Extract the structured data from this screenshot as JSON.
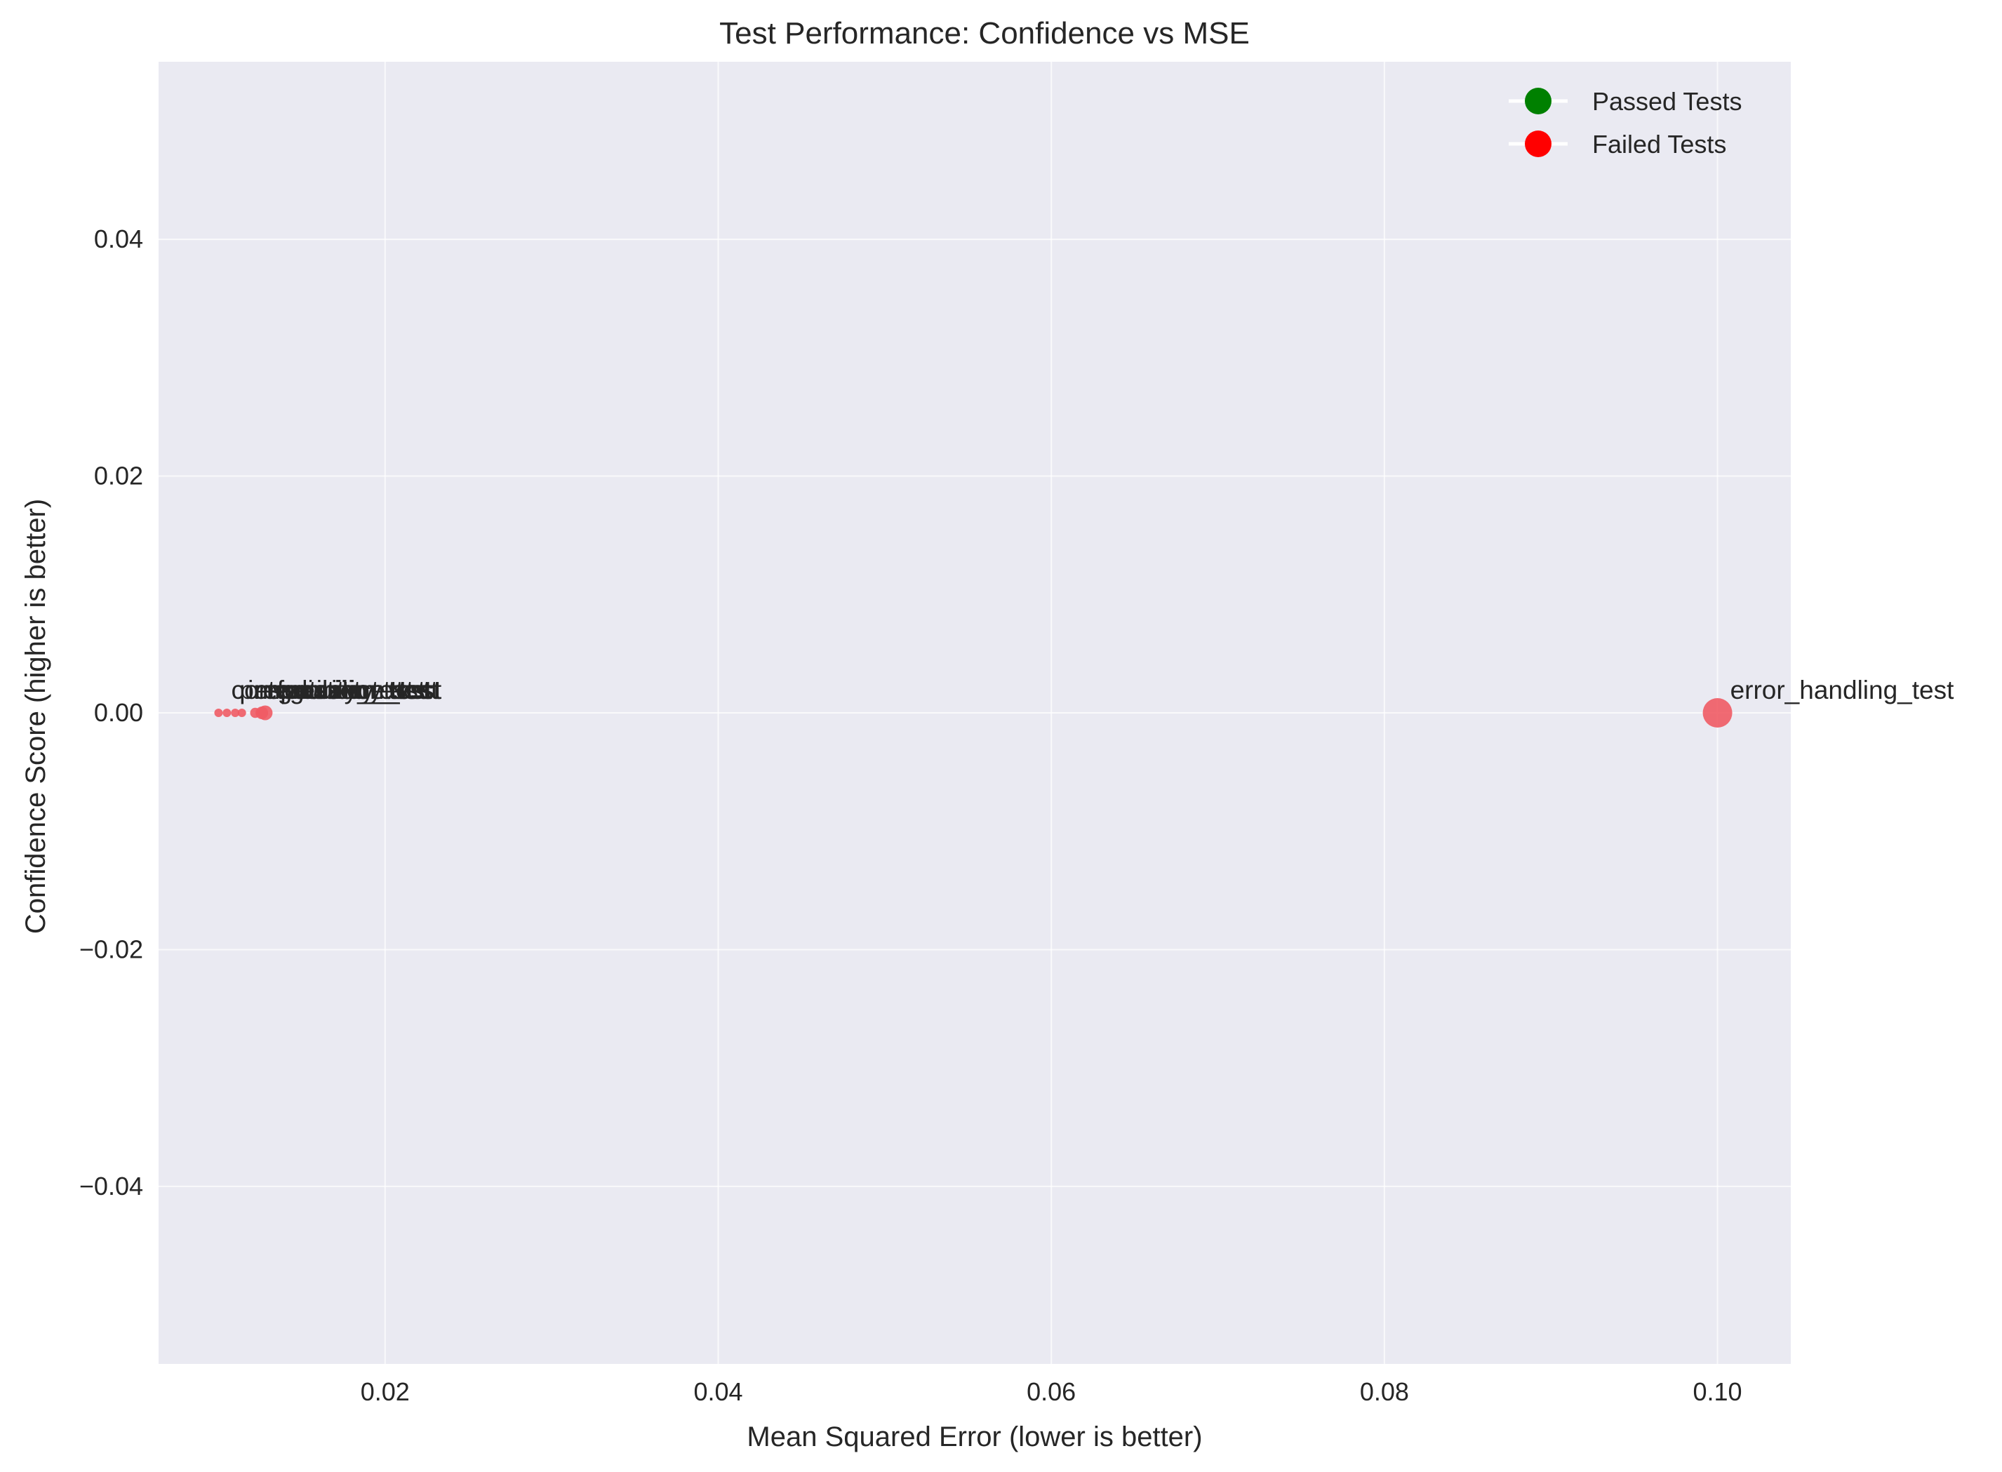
{
  "chart_data": {
    "type": "scatter",
    "title": "Test Performance: Confidence vs MSE",
    "xlabel": "Mean Squared Error (lower is better)",
    "ylabel": "Confidence Score (higher is better)",
    "xlim": [
      0.0064,
      0.1044
    ],
    "ylim": [
      -0.055,
      0.055
    ],
    "xticks": [
      0.02,
      0.04,
      0.06,
      0.08,
      0.1
    ],
    "xtick_labels": [
      "0.02",
      "0.04",
      "0.06",
      "0.08",
      "0.10"
    ],
    "yticks": [
      -0.04,
      -0.02,
      0.0,
      0.02,
      0.04
    ],
    "ytick_labels": [
      "−0.04",
      "−0.02",
      "0.00",
      "0.02",
      "0.04"
    ],
    "grid": true,
    "legend_position": "top-right",
    "legend": [
      {
        "label": "Passed Tests",
        "color": "#008000"
      },
      {
        "label": "Failed Tests",
        "color": "#ff0000"
      }
    ],
    "colors": {
      "background": "#eaeaf2",
      "failed_marker": "#ef5b64"
    },
    "series": [
      {
        "name": "Failed Tests",
        "points": [
          {
            "x": 0.01,
            "y": 0.0,
            "label": "compatibility_test",
            "size": 1
          },
          {
            "x": 0.0105,
            "y": 0.0,
            "label": "performance_test",
            "size": 1
          },
          {
            "x": 0.011,
            "y": 0.0,
            "label": "integration_test",
            "size": 1
          },
          {
            "x": 0.0114,
            "y": 0.0,
            "label": "regression_test",
            "size": 1
          },
          {
            "x": 0.0122,
            "y": 0.0,
            "label": "security_test",
            "size": 1.4
          },
          {
            "x": 0.0126,
            "y": 0.0,
            "label": "validation_test",
            "size": 2
          },
          {
            "x": 0.0128,
            "y": 0.0,
            "label": "accuracy_test",
            "size": 2.5
          },
          {
            "x": 0.1,
            "y": 0.0,
            "label": "error_handling_test",
            "size": 6
          }
        ]
      }
    ]
  }
}
